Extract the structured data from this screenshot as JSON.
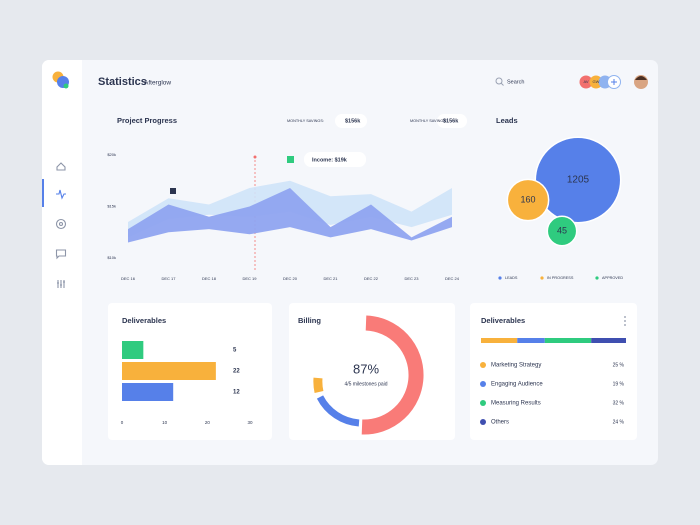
{
  "header": {
    "title": "Statistics",
    "project": "Afterglow",
    "search": "Search",
    "avatars": [
      "AV",
      "GW"
    ]
  },
  "project_progress": {
    "title": "Project Progress",
    "savings": [
      {
        "label": "MONTHLY SAVINGS:",
        "value": "$156k"
      },
      {
        "label": "MONTHLY SAVINGS:",
        "value": "$156k"
      }
    ],
    "tooltip": "Income: $19k",
    "chart": {
      "type": "band",
      "x": [
        "DEC 16",
        "DEC 17",
        "DEC 18",
        "DEC 19",
        "DEC 20",
        "DEC 21",
        "DEC 22",
        "DEC 23",
        "DEC 24"
      ],
      "ylim": [
        10,
        20
      ],
      "yticks": [
        {
          "value": 10,
          "label": "$10k"
        },
        {
          "value": 15,
          "label": "$15k"
        },
        {
          "value": 20,
          "label": "$20k"
        }
      ],
      "series": [
        {
          "color": "#cfe3f8",
          "high": [
            13.5,
            15.8,
            15.2,
            16.8,
            17.5,
            16,
            16.2,
            14.5,
            16.8
          ],
          "low": [
            12,
            13.8,
            14.2,
            14,
            14.5,
            13.2,
            14,
            13,
            14.2
          ]
        },
        {
          "color": "#8fa4f0",
          "high": [
            12.8,
            15.2,
            14,
            15,
            16.8,
            13,
            15.2,
            12,
            14
          ],
          "low": [
            11.5,
            12.5,
            12.8,
            12.3,
            13,
            12,
            12.8,
            11.7,
            13
          ]
        }
      ]
    }
  },
  "leads": {
    "title": "Leads",
    "type": "bubble",
    "series": [
      {
        "name": "LEADS",
        "color": "#5680e9",
        "value": 1205
      },
      {
        "name": "IN PROGRESS",
        "color": "#f8b13c",
        "value": 160
      },
      {
        "name": "APPROVED",
        "color": "#2fcb7f",
        "value": 45
      }
    ]
  },
  "deliverables_bars": {
    "title": "Deliverables",
    "type": "bar",
    "values": [
      5,
      22,
      12
    ],
    "colors": [
      "#2fcb7f",
      "#f8b13c",
      "#5680e9"
    ],
    "xlim": [
      0,
      30
    ],
    "xticks": [
      0,
      10,
      20,
      30
    ]
  },
  "billing": {
    "title": "Billing",
    "percent": "87%",
    "caption": "4/5 milestones paid"
  },
  "deliverables_list": {
    "title": "Deliverables",
    "items": [
      {
        "name": "Marketing Strategy",
        "color": "#f8b13c",
        "share": {
          "value": 25,
          "label": "25 %"
        }
      },
      {
        "name": "Engaging Audience",
        "color": "#5680e9",
        "share": {
          "value": 19,
          "label": "19 %"
        }
      },
      {
        "name": "Measuring Results",
        "color": "#2fcb7f",
        "share": {
          "value": 32,
          "label": "32 %"
        }
      },
      {
        "name": "Others",
        "color": "#3f4fb0",
        "share": {
          "value": 24,
          "label": "24 %"
        }
      }
    ]
  }
}
